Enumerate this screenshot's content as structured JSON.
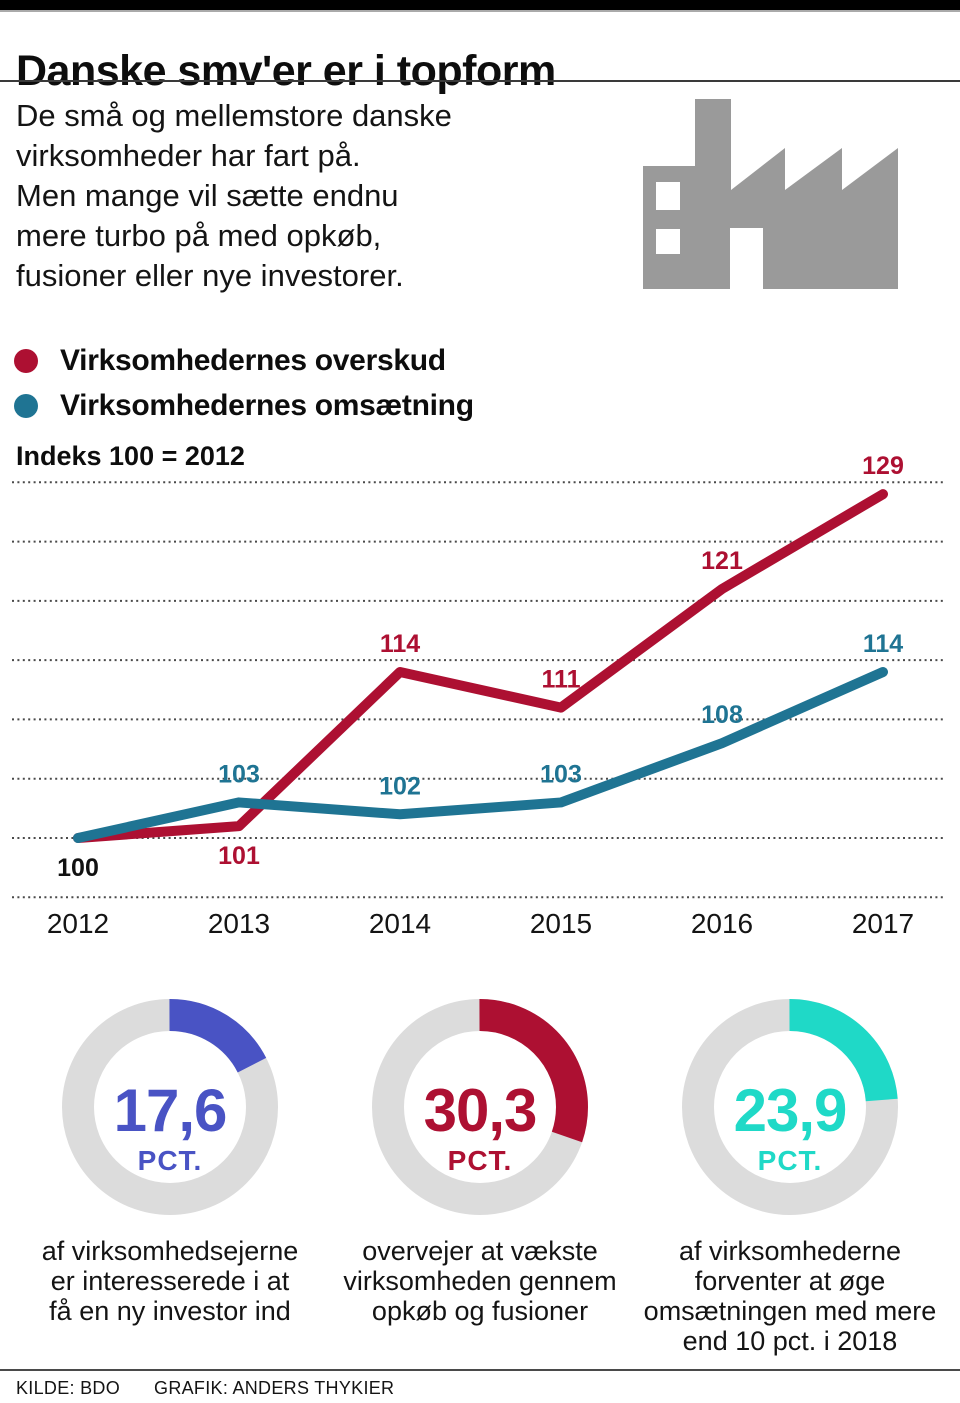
{
  "header": {
    "title": "Danske smv'er er i topform"
  },
  "intro": {
    "text": "De små og mellemstore danske\nvirksomheder har fart på.\nMen mange vil sætte endnu\nmere turbo på med opkøb,\nfusioner eller nye investorer."
  },
  "icons": {
    "factory": "factory-icon",
    "factory_color": "#9a9a9a"
  },
  "chart_data": [
    {
      "type": "line",
      "title": "Indeks 100 = 2012",
      "x": [
        "2012",
        "2013",
        "2014",
        "2015",
        "2016",
        "2017"
      ],
      "series": [
        {
          "name": "Virksomhedernes overskud",
          "color": "#ad1032",
          "values": [
            100,
            101,
            114,
            111,
            121,
            129
          ],
          "point_labels": [
            "100",
            "101",
            "114",
            "111",
            "121",
            "129"
          ],
          "label_placements": [
            "below",
            "below",
            "above",
            "above",
            "above",
            "above"
          ],
          "label_colors": [
            "#111111",
            null,
            null,
            null,
            null,
            null
          ]
        },
        {
          "name": "Virksomhedernes omsætning",
          "color": "#1f7493",
          "values": [
            100,
            103,
            102,
            103,
            108,
            114
          ],
          "point_labels": [
            null,
            "103",
            "102",
            "103",
            "108",
            "114"
          ],
          "label_placements": [
            null,
            "above",
            "above",
            "above",
            "above",
            "above"
          ],
          "label_colors": [
            null,
            null,
            null,
            null,
            null,
            null
          ]
        }
      ],
      "ylim": [
        95,
        130
      ],
      "grid_values": [
        130,
        125,
        120,
        115,
        110,
        105,
        100,
        95
      ],
      "grid": "dotted-horizontal",
      "legend_position": "top-left"
    },
    {
      "type": "pie",
      "label": "17,6",
      "unit": "PCT.",
      "values": [
        17.6,
        82.4
      ],
      "colors": [
        "#4953c4",
        "#dcdcdc"
      ],
      "caption": "af virksomhedsejerne\ner interesserede i at\nfå en ny investor ind"
    },
    {
      "type": "pie",
      "label": "30,3",
      "unit": "PCT.",
      "values": [
        30.3,
        69.7
      ],
      "colors": [
        "#ad1032",
        "#dcdcdc"
      ],
      "caption": "overvejer at vækste\nvirksomheden gennem\nopkøb og fusioner"
    },
    {
      "type": "pie",
      "label": "23,9",
      "unit": "PCT.",
      "values": [
        23.9,
        76.1
      ],
      "colors": [
        "#1fd9c7",
        "#dcdcdc"
      ],
      "caption": "af virksomhederne\nforventer at øge\nomsætningen med mere\nend 10 pct. i 2018"
    }
  ],
  "footer": {
    "source_label": "KILDE: BDO",
    "credit_label": "GRAFIK: ANDERS THYKIER"
  }
}
